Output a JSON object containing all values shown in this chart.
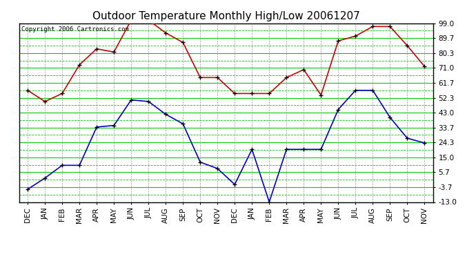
{
  "title": "Outdoor Temperature Monthly High/Low 20061207",
  "copyright": "Copyright 2006 Cartronics.com",
  "months": [
    "DEC",
    "JAN",
    "FEB",
    "MAR",
    "APR",
    "MAY",
    "JUN",
    "JUL",
    "AUG",
    "SEP",
    "OCT",
    "NOV",
    "DEC",
    "JAN",
    "FEB",
    "MAR",
    "APR",
    "MAY",
    "JUN",
    "JUL",
    "AUG",
    "SEP",
    "OCT",
    "NOV"
  ],
  "high_temps": [
    57,
    50,
    55,
    73,
    83,
    81,
    101,
    101,
    93,
    87,
    65,
    65,
    55,
    55,
    55,
    65,
    70,
    54,
    88,
    91,
    97,
    97,
    85,
    72
  ],
  "low_temps": [
    -5,
    2,
    10,
    10,
    34,
    35,
    51,
    50,
    42,
    36,
    12,
    8,
    -2,
    20,
    -13,
    20,
    20,
    20,
    45,
    57,
    57,
    40,
    27,
    24
  ],
  "y_ticks": [
    -13.0,
    -3.7,
    5.7,
    15.0,
    24.3,
    33.7,
    43.0,
    52.3,
    61.7,
    71.0,
    80.3,
    89.7,
    99.0
  ],
  "ymin": -13.0,
  "ymax": 99.0,
  "bg_color": "#ffffff",
  "plot_bg_color": "#ffffff",
  "grid_color_solid": "#00cc00",
  "grid_color_dash": "#00cc00",
  "grid_color_vert": "#999999",
  "line_high_color": "#cc0000",
  "line_low_color": "#0000cc",
  "marker_color": "#000000",
  "title_color": "#000000",
  "copyright_color": "#000000",
  "axis_label_color": "#000000",
  "title_fontsize": 11,
  "copyright_fontsize": 6.5,
  "tick_fontsize": 7.5
}
